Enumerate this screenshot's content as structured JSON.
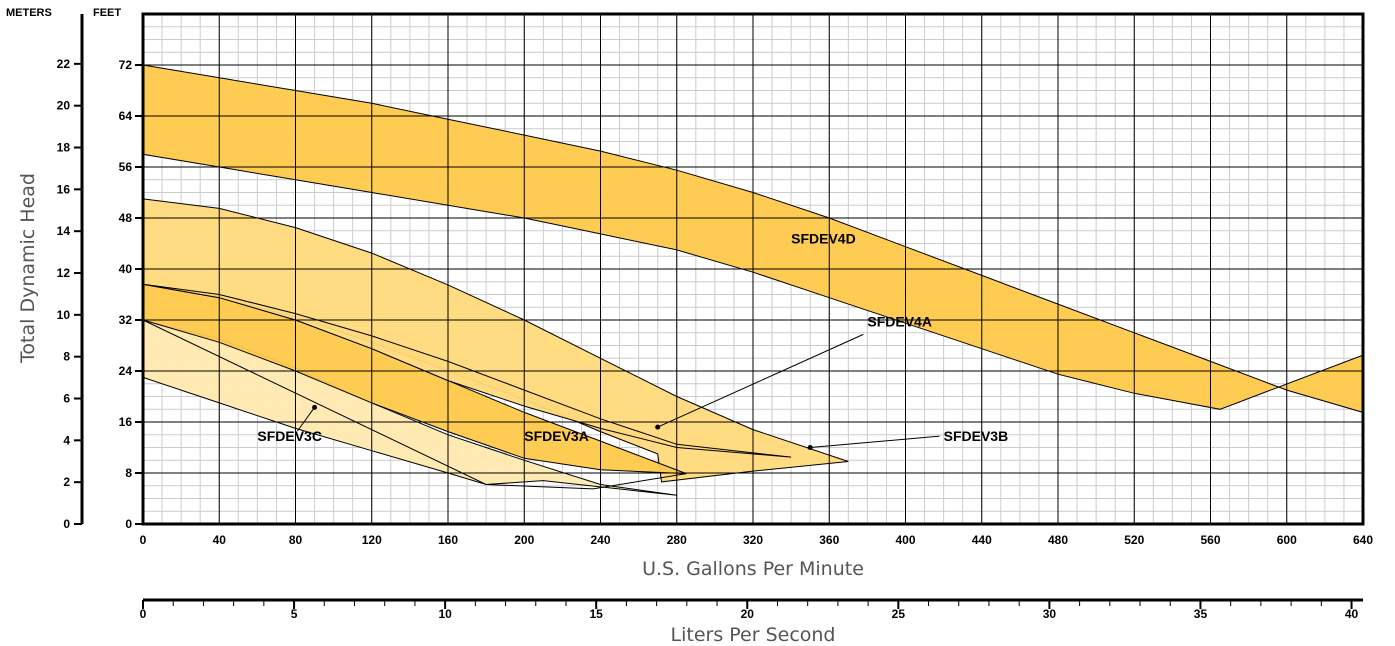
{
  "chart_data": {
    "type": "area",
    "xlabel": "U.S. Gallons Per Minute",
    "x2label": "Liters Per Second",
    "ylabel": "Total Dynamic Head",
    "y_left_unit": "METERS",
    "y_right_unit": "FEET",
    "xlim": [
      0,
      640
    ],
    "ylim_feet": [
      0,
      80
    ],
    "ylim_meters": [
      0,
      24.384
    ],
    "x2lim": [
      0,
      40.38
    ],
    "x_ticks": [
      0,
      40,
      80,
      120,
      160,
      200,
      240,
      280,
      320,
      360,
      400,
      440,
      480,
      520,
      560,
      600,
      640
    ],
    "y_feet_ticks": [
      0,
      8,
      16,
      24,
      32,
      40,
      48,
      56,
      64,
      72
    ],
    "y_meter_ticks": [
      0,
      2,
      4,
      6,
      8,
      10,
      12,
      14,
      16,
      18,
      20,
      22
    ],
    "x2_ticks": [
      0,
      5,
      10,
      15,
      20,
      25,
      30,
      35,
      40
    ],
    "grid": true,
    "colors": {
      "dark_fill": "#ffc94a",
      "mid_fill": "#ffd97a",
      "light_fill": "#ffe9b0",
      "outline": "#000000",
      "grid_minor": "#cccccc",
      "grid_major": "#000000"
    },
    "series": [
      {
        "name": "SFDEV3C",
        "shade": "light",
        "upper": [
          [
            0,
            32
          ],
          [
            40,
            29
          ],
          [
            80,
            24.5
          ],
          [
            120,
            19
          ],
          [
            160,
            14
          ],
          [
            200,
            10
          ],
          [
            240,
            6.2
          ],
          [
            280,
            4.5
          ]
        ],
        "lower": [
          [
            0,
            23
          ],
          [
            40,
            19
          ],
          [
            80,
            15
          ],
          [
            120,
            11.5
          ],
          [
            160,
            8
          ],
          [
            180,
            6.2
          ],
          [
            210,
            6.8
          ],
          [
            280,
            4.5
          ]
        ],
        "label_at": [
          60,
          13
        ],
        "dot_at": [
          90,
          18.3
        ]
      },
      {
        "name": "SFDEV3B",
        "shade": "mid",
        "upper": [
          [
            0,
            51
          ],
          [
            40,
            49.5
          ],
          [
            80,
            46.5
          ],
          [
            120,
            42.5
          ],
          [
            160,
            37.5
          ],
          [
            200,
            32
          ],
          [
            240,
            26
          ],
          [
            280,
            20
          ],
          [
            320,
            14.8
          ],
          [
            370,
            9.8
          ]
        ],
        "lower": [
          [
            0,
            37.5
          ],
          [
            40,
            35.5
          ],
          [
            80,
            32.5
          ],
          [
            120,
            28.5
          ],
          [
            160,
            24
          ],
          [
            200,
            19.5
          ],
          [
            240,
            14.5
          ],
          [
            270,
            11
          ],
          [
            272,
            6.6
          ],
          [
            320,
            8.3
          ],
          [
            370,
            9.8
          ]
        ],
        "label_at": [
          420,
          13
        ],
        "dot_at": [
          350,
          12
        ]
      },
      {
        "name": "SFDEV3A",
        "shade": "dark",
        "upper": [
          [
            0,
            32
          ],
          [
            40,
            28.5
          ],
          [
            80,
            24
          ],
          [
            120,
            19
          ],
          [
            160,
            14.5
          ],
          [
            200,
            10.3
          ],
          [
            240,
            8.5
          ],
          [
            285,
            7.9
          ]
        ],
        "lower": [
          [
            0,
            37.6
          ],
          [
            40,
            35.5
          ],
          [
            80,
            32
          ],
          [
            120,
            27.5
          ],
          [
            160,
            22.5
          ],
          [
            200,
            17.5
          ],
          [
            240,
            13
          ],
          [
            285,
            7.9
          ]
        ],
        "extra_lower": [
          [
            0,
            32
          ],
          [
            180,
            6.2
          ],
          [
            236,
            5.5
          ],
          [
            285,
            7.9
          ]
        ],
        "label_at": [
          200,
          13
        ],
        "dot_at": null
      },
      {
        "name": "SFDEV4A",
        "shade": "mid",
        "upper": [
          [
            0,
            37.6
          ],
          [
            40,
            36
          ],
          [
            80,
            33
          ],
          [
            120,
            29.5
          ],
          [
            160,
            25.5
          ],
          [
            200,
            21
          ],
          [
            240,
            16.5
          ],
          [
            280,
            12.5
          ],
          [
            340,
            10.5
          ]
        ],
        "lower": [
          [
            0,
            37.6
          ],
          [
            40,
            35.5
          ],
          [
            80,
            32
          ],
          [
            120,
            27.5
          ],
          [
            160,
            22.5
          ],
          [
            200,
            18.5
          ],
          [
            240,
            15
          ],
          [
            280,
            12
          ],
          [
            340,
            10.5
          ]
        ],
        "label_at": [
          380,
          31
        ],
        "dot_at": [
          270,
          15.2
        ]
      },
      {
        "name": "SFDEV4D",
        "shade": "dark",
        "upper": [
          [
            0,
            72
          ],
          [
            40,
            70
          ],
          [
            80,
            68
          ],
          [
            120,
            66
          ],
          [
            160,
            63.5
          ],
          [
            200,
            61
          ],
          [
            240,
            58.5
          ],
          [
            280,
            55.5
          ],
          [
            320,
            52
          ],
          [
            360,
            48
          ],
          [
            400,
            43.5
          ],
          [
            440,
            39
          ],
          [
            480,
            34.5
          ],
          [
            520,
            30
          ],
          [
            560,
            25.5
          ],
          [
            600,
            21
          ],
          [
            640,
            17.5
          ]
        ],
        "lower": [
          [
            0,
            58
          ],
          [
            40,
            56
          ],
          [
            80,
            54
          ],
          [
            120,
            52
          ],
          [
            160,
            50
          ],
          [
            200,
            48
          ],
          [
            240,
            45.5
          ],
          [
            280,
            43
          ],
          [
            320,
            39.5
          ],
          [
            360,
            35.5
          ],
          [
            400,
            31.5
          ],
          [
            440,
            27.5
          ],
          [
            480,
            23.5
          ],
          [
            520,
            20.5
          ],
          [
            565,
            18
          ],
          [
            640,
            26.5
          ]
        ],
        "label_at": [
          340,
          44
        ],
        "dot_at": null
      }
    ]
  }
}
